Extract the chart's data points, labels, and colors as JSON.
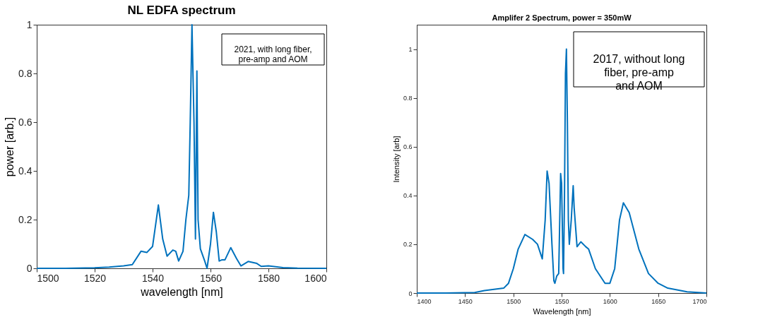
{
  "chart_data": [
    {
      "type": "line",
      "title": "NL EDFA spectrum",
      "xlabel": "wavelength [nm]",
      "ylabel": "power [arb.]",
      "annotations": [
        "2021, with long fiber,\npre-amp and AOM"
      ],
      "xlim": [
        1500,
        1600
      ],
      "xticks": [
        1500,
        1520,
        1540,
        1560,
        1580,
        1600
      ],
      "ylim": [
        0,
        1
      ],
      "yticks": [
        0,
        0.2,
        0.4,
        0.6,
        0.8,
        1
      ],
      "grid": false,
      "series": [
        {
          "color": "#0072bd",
          "x": [
            1500,
            1510,
            1520,
            1525,
            1530,
            1533,
            1536,
            1538,
            1540,
            1542,
            1543.5,
            1545,
            1547,
            1548,
            1549,
            1550.5,
            1551.5,
            1552.5,
            1553,
            1553.6,
            1554.3,
            1554.8,
            1555.3,
            1555.7,
            1556.5,
            1558,
            1558.8,
            1560,
            1561,
            1562,
            1563,
            1564,
            1565,
            1567,
            1569,
            1570.5,
            1573,
            1576,
            1577.5,
            1580,
            1585,
            1590,
            1600
          ],
          "values": [
            0,
            0,
            0.002,
            0.005,
            0.01,
            0.015,
            0.07,
            0.065,
            0.09,
            0.26,
            0.12,
            0.05,
            0.075,
            0.07,
            0.03,
            0.07,
            0.2,
            0.3,
            0.6,
            1.0,
            0.6,
            0.12,
            0.81,
            0.2,
            0.08,
            0.03,
            0.0,
            0.1,
            0.23,
            0.15,
            0.03,
            0.035,
            0.035,
            0.085,
            0.04,
            0.01,
            0.028,
            0.02,
            0.008,
            0.01,
            0.003,
            0.001,
            0
          ]
        }
      ]
    },
    {
      "type": "line",
      "title": "Amplifer 2 Spectrum, power = 350mW",
      "xlabel": "Wavelength [nm]",
      "ylabel": "Intensity [arb]",
      "annotations": [
        "2017, without long\nfiber, pre-amp\nand AOM"
      ],
      "xlim": [
        1400,
        1700
      ],
      "xticks": [
        1400,
        1450,
        1500,
        1550,
        1600,
        1650,
        1700
      ],
      "ylim": [
        0,
        1.1
      ],
      "yticks": [
        0,
        0.2,
        0.4,
        0.6,
        0.8,
        1
      ],
      "grid": false,
      "series": [
        {
          "color": "#0072bd",
          "x": [
            1400,
            1430,
            1460,
            1470,
            1490,
            1495,
            1500,
            1505,
            1512,
            1520,
            1525,
            1530,
            1533,
            1535,
            1537,
            1540,
            1542,
            1543,
            1545,
            1547,
            1549,
            1550,
            1551.5,
            1552,
            1553,
            1554,
            1555,
            1556,
            1557,
            1558,
            1560,
            1562,
            1563,
            1566,
            1570,
            1575,
            1578,
            1585,
            1595,
            1600,
            1605,
            1610,
            1614,
            1620,
            1630,
            1640,
            1650,
            1660,
            1680,
            1700
          ],
          "values": [
            0,
            0,
            0.002,
            0.01,
            0.02,
            0.04,
            0.1,
            0.18,
            0.24,
            0.22,
            0.2,
            0.14,
            0.3,
            0.5,
            0.45,
            0.2,
            0.05,
            0.04,
            0.07,
            0.08,
            0.49,
            0.45,
            0.1,
            0.08,
            0.4,
            0.9,
            1.0,
            0.7,
            0.3,
            0.2,
            0.3,
            0.44,
            0.35,
            0.19,
            0.21,
            0.19,
            0.18,
            0.1,
            0.04,
            0.04,
            0.1,
            0.3,
            0.37,
            0.33,
            0.18,
            0.08,
            0.04,
            0.02,
            0.005,
            0
          ]
        }
      ]
    }
  ]
}
